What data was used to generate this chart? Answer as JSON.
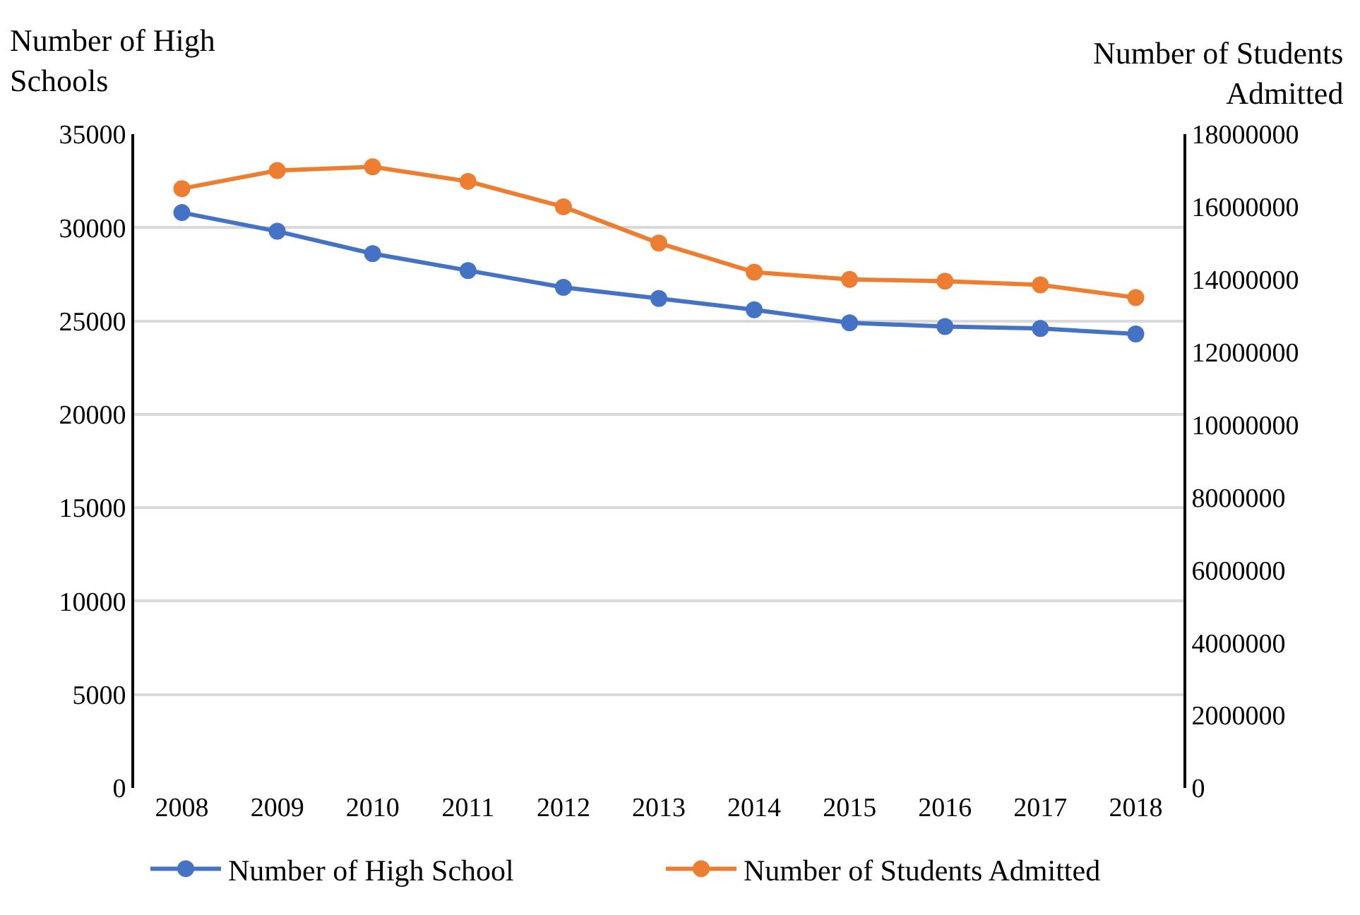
{
  "chart_data": {
    "type": "line",
    "ylabel": "Number of High Schools",
    "y2label": "Number of Students Admitted",
    "categories": [
      "2008",
      "2009",
      "2010",
      "2011",
      "2012",
      "2013",
      "2014",
      "2015",
      "2016",
      "2017",
      "2018"
    ],
    "series": [
      {
        "name": "Number of High School",
        "color": "#4472c4",
        "values": [
          30800,
          29800,
          28600,
          27700,
          26800,
          26200,
          25600,
          24900,
          24700,
          24600,
          24300
        ]
      },
      {
        "name": "Number of Students Admitted",
        "color": "#ed7d31",
        "axis": "y2",
        "values": [
          16500000,
          17000000,
          17100000,
          16700000,
          16000000,
          15000000,
          14200000,
          14000000,
          13950000,
          13850000,
          13500000
        ]
      }
    ],
    "ylim": [
      0,
      35000
    ],
    "yticks": [
      0,
      5000,
      10000,
      15000,
      20000,
      25000,
      30000,
      35000
    ],
    "y2lim": [
      0,
      18000000
    ],
    "y2ticks": [
      0,
      2000000,
      4000000,
      6000000,
      8000000,
      10000000,
      12000000,
      14000000,
      16000000,
      18000000
    ],
    "grid": "y",
    "legend": "bottom",
    "marker": "circle",
    "line_style": "solid"
  }
}
